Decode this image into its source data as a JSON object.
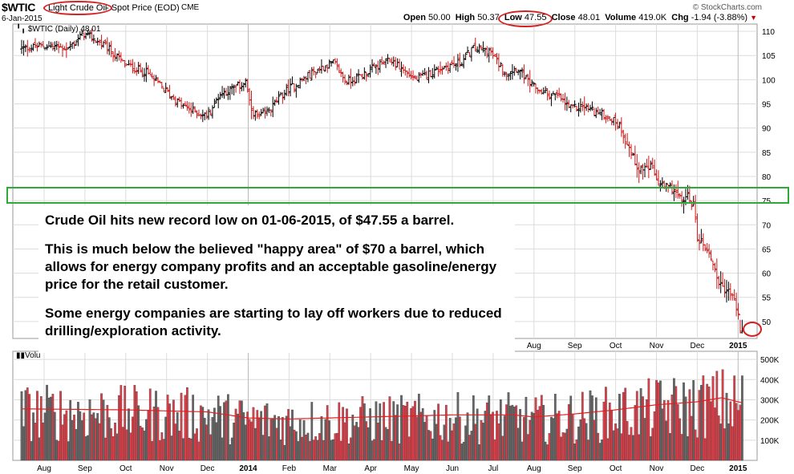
{
  "header": {
    "symbol": "$WTIC",
    "name": "Light Crude Oil",
    "description": "- Spot Price (EOD)",
    "exchange": "CME",
    "date": "6-Jan-2015",
    "brand": "© StockCharts.com",
    "open_label": "Open",
    "open": "50.00",
    "high_label": "High",
    "high": "50.37",
    "low_label": "Low",
    "low": "47.55",
    "close_label": "Close",
    "close": "48.01",
    "volume_label": "Volume",
    "volume": "419.0K",
    "chg_label": "Chg",
    "chg": "-1.94 (-3.88%)"
  },
  "price_panel_label": "$WTIC (Daily) 48.01",
  "volume_panel_label": "Volu",
  "annotation": {
    "line1": "Crude Oil hits new record low on 01-06-2015, of $47.55 a barrel.",
    "line2": "This is much below the believed \"happy area\" of $70 a barrel, which allows for energy company profits and an acceptable gasoline/energy price for the retail customer.",
    "line3": "Some energy companies are starting to lay off workers due to reduced drilling/exploration activity."
  },
  "colors": {
    "up": "#000000",
    "down": "#d01818",
    "vol_up": "#666666",
    "vol_down": "#d9404a",
    "ma_line": "#e02020",
    "highlight_green": "#2eaa3a",
    "highlight_red": "#d42020",
    "grid": "#dcdcdc"
  },
  "chart_data": [
    {
      "type": "line",
      "title": "$WTIC (Daily) 48.01",
      "y_ticks": [
        110,
        105,
        100,
        95,
        90,
        85,
        80,
        75,
        70,
        65,
        60,
        55,
        50
      ],
      "ylim": [
        46.5,
        111.5
      ],
      "x_labels": [
        {
          "label": "Aug",
          "month": 0,
          "bold": false
        },
        {
          "label": "Sep",
          "month": 1,
          "bold": false
        },
        {
          "label": "Oct",
          "month": 2,
          "bold": false
        },
        {
          "label": "Nov",
          "month": 3,
          "bold": false
        },
        {
          "label": "Dec",
          "month": 4,
          "bold": false
        },
        {
          "label": "2014",
          "month": 5,
          "bold": true
        },
        {
          "label": "Feb",
          "month": 6,
          "bold": false
        },
        {
          "label": "Mar",
          "month": 7,
          "bold": false
        },
        {
          "label": "Apr",
          "month": 8,
          "bold": false
        },
        {
          "label": "May",
          "month": 9,
          "bold": false
        },
        {
          "label": "Jun",
          "month": 10,
          "bold": false
        },
        {
          "label": "Jul",
          "month": 11,
          "bold": false
        },
        {
          "label": "Aug",
          "month": 12,
          "bold": false
        },
        {
          "label": "Sep",
          "month": 13,
          "bold": false
        },
        {
          "label": "Oct",
          "month": 14,
          "bold": false
        },
        {
          "label": "Nov",
          "month": 15,
          "bold": false
        },
        {
          "label": "Dec",
          "month": 16,
          "bold": false
        },
        {
          "label": "2015",
          "month": 17,
          "bold": true
        }
      ],
      "x_range_months": [
        -0.55,
        17.1
      ],
      "close_anchors": [
        {
          "t": -0.55,
          "v": 106.5
        },
        {
          "t": 0.0,
          "v": 107.0
        },
        {
          "t": 0.6,
          "v": 106.5
        },
        {
          "t": 0.95,
          "v": 109.5
        },
        {
          "t": 1.3,
          "v": 108.0
        },
        {
          "t": 1.55,
          "v": 106.5
        },
        {
          "t": 2.0,
          "v": 103.0
        },
        {
          "t": 2.5,
          "v": 101.5
        },
        {
          "t": 3.0,
          "v": 97.5
        },
        {
          "t": 3.4,
          "v": 94.5
        },
        {
          "t": 3.8,
          "v": 93.0
        },
        {
          "t": 4.0,
          "v": 92.5
        },
        {
          "t": 4.3,
          "v": 97.0
        },
        {
          "t": 4.7,
          "v": 98.5
        },
        {
          "t": 4.95,
          "v": 99.5
        },
        {
          "t": 5.05,
          "v": 94.0
        },
        {
          "t": 5.25,
          "v": 92.0
        },
        {
          "t": 5.6,
          "v": 94.5
        },
        {
          "t": 5.9,
          "v": 97.5
        },
        {
          "t": 6.5,
          "v": 101.0
        },
        {
          "t": 6.9,
          "v": 103.0
        },
        {
          "t": 7.1,
          "v": 103.5
        },
        {
          "t": 7.4,
          "v": 99.5
        },
        {
          "t": 7.8,
          "v": 101.0
        },
        {
          "t": 8.2,
          "v": 103.0
        },
        {
          "t": 8.5,
          "v": 104.0
        },
        {
          "t": 8.8,
          "v": 102.0
        },
        {
          "t": 9.1,
          "v": 100.0
        },
        {
          "t": 9.5,
          "v": 101.5
        },
        {
          "t": 9.9,
          "v": 103.0
        },
        {
          "t": 10.2,
          "v": 103.5
        },
        {
          "t": 10.5,
          "v": 106.5
        },
        {
          "t": 10.9,
          "v": 106.0
        },
        {
          "t": 11.3,
          "v": 101.5
        },
        {
          "t": 11.6,
          "v": 102.5
        },
        {
          "t": 11.9,
          "v": 99.0
        },
        {
          "t": 12.2,
          "v": 97.5
        },
        {
          "t": 12.6,
          "v": 96.5
        },
        {
          "t": 12.9,
          "v": 94.0
        },
        {
          "t": 13.2,
          "v": 94.5
        },
        {
          "t": 13.6,
          "v": 93.0
        },
        {
          "t": 13.9,
          "v": 92.0
        },
        {
          "t": 14.1,
          "v": 90.5
        },
        {
          "t": 14.3,
          "v": 86.5
        },
        {
          "t": 14.55,
          "v": 81.5
        },
        {
          "t": 14.85,
          "v": 82.0
        },
        {
          "t": 15.1,
          "v": 78.0
        },
        {
          "t": 15.4,
          "v": 77.5
        },
        {
          "t": 15.6,
          "v": 75.0
        },
        {
          "t": 15.8,
          "v": 76.0
        },
        {
          "t": 15.92,
          "v": 73.5
        },
        {
          "t": 16.0,
          "v": 67.5
        },
        {
          "t": 16.15,
          "v": 66.0
        },
        {
          "t": 16.35,
          "v": 63.0
        },
        {
          "t": 16.55,
          "v": 57.5
        },
        {
          "t": 16.8,
          "v": 56.0
        },
        {
          "t": 16.9,
          "v": 54.5
        },
        {
          "t": 17.05,
          "v": 50.0
        },
        {
          "t": 17.1,
          "v": 48.01
        }
      ],
      "last_close": 48.01,
      "last_low": 47.55
    },
    {
      "type": "bar",
      "title": "Volu",
      "y_ticks": [
        {
          "v": 500000,
          "label": "500K"
        },
        {
          "v": 400000,
          "label": "400K"
        },
        {
          "v": 300000,
          "label": "300K"
        },
        {
          "v": 200000,
          "label": "200K"
        },
        {
          "v": 100000,
          "label": "100K"
        }
      ],
      "ylim": [
        0,
        540000
      ],
      "ma_anchors": [
        {
          "t": -0.55,
          "v": 255000
        },
        {
          "t": 2.0,
          "v": 250000
        },
        {
          "t": 4.0,
          "v": 240000
        },
        {
          "t": 5.0,
          "v": 210000
        },
        {
          "t": 6.0,
          "v": 205000
        },
        {
          "t": 8.0,
          "v": 215000
        },
        {
          "t": 10.0,
          "v": 225000
        },
        {
          "t": 11.5,
          "v": 225000
        },
        {
          "t": 12.0,
          "v": 215000
        },
        {
          "t": 13.0,
          "v": 230000
        },
        {
          "t": 14.0,
          "v": 250000
        },
        {
          "t": 15.0,
          "v": 275000
        },
        {
          "t": 16.0,
          "v": 290000
        },
        {
          "t": 16.6,
          "v": 310000
        },
        {
          "t": 17.1,
          "v": 285000
        }
      ],
      "last_volume": 419000
    }
  ]
}
